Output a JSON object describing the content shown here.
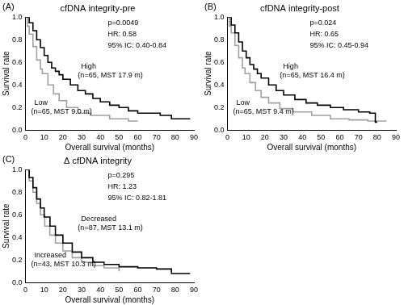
{
  "chart_data": [
    {
      "type": "line",
      "panel": "(A)",
      "title": "cfDNA integrity-pre",
      "x_label": "Overall survival (months)",
      "y_label": "Survival rate",
      "xlim": [
        0,
        90
      ],
      "xticks": [
        0,
        10,
        20,
        30,
        40,
        50,
        60,
        70,
        80,
        90
      ],
      "ylim": [
        0,
        1
      ],
      "yticks": [
        {
          "value": 0,
          "label": "0.0"
        },
        {
          "value": 0.2,
          "label": "0.2"
        },
        {
          "value": 0.4,
          "label": "0.4"
        },
        {
          "value": 0.6,
          "label": "0.6"
        },
        {
          "value": 0.8,
          "label": "0.8"
        },
        {
          "value": 1,
          "label": "1.0"
        }
      ],
      "grid": false,
      "line_style": "step",
      "annotations": [
        "p=0.0049",
        "HR: 0.58",
        "95% IC: 0.40-0.84"
      ],
      "series": [
        {
          "name": "High",
          "annotation": "(n=65, MST 17.9 m)",
          "color": "#000000",
          "x": [
            0,
            2,
            4,
            6,
            8,
            10,
            12,
            14,
            16,
            18,
            20,
            24,
            28,
            32,
            36,
            40,
            45,
            50,
            55,
            60,
            66,
            72,
            78,
            88
          ],
          "values": [
            1,
            0.95,
            0.88,
            0.8,
            0.73,
            0.66,
            0.6,
            0.55,
            0.52,
            0.49,
            0.45,
            0.4,
            0.35,
            0.32,
            0.28,
            0.25,
            0.22,
            0.2,
            0.17,
            0.15,
            0.15,
            0.13,
            0.1,
            0.1
          ]
        },
        {
          "name": "Low",
          "annotation": "(n=65, MST 9.0 m)",
          "color": "#a0a0a0",
          "x": [
            0,
            1,
            2,
            4,
            6,
            8,
            9,
            12,
            15,
            18,
            22,
            28,
            35,
            45,
            55,
            60
          ],
          "values": [
            1,
            0.92,
            0.85,
            0.74,
            0.62,
            0.54,
            0.5,
            0.4,
            0.32,
            0.26,
            0.2,
            0.15,
            0.13,
            0.1,
            0.08,
            0.08
          ]
        }
      ]
    },
    {
      "type": "line",
      "panel": "(B)",
      "title": "cfDNA integrity-post",
      "x_label": "Overall survival (months)",
      "y_label": "Survival rate",
      "xlim": [
        0,
        90
      ],
      "xticks": [
        0,
        10,
        20,
        30,
        40,
        50,
        60,
        70,
        80,
        90
      ],
      "ylim": [
        0,
        1
      ],
      "yticks": [
        {
          "value": 0,
          "label": "0.0"
        },
        {
          "value": 0.2,
          "label": "0.2"
        },
        {
          "value": 0.4,
          "label": "0.4"
        },
        {
          "value": 0.6,
          "label": "0.6"
        },
        {
          "value": 0.8,
          "label": "0.8"
        },
        {
          "value": 1,
          "label": "1.0"
        }
      ],
      "grid": false,
      "line_style": "step",
      "annotations": [
        "p=0.024",
        "HR: 0.65",
        "95% IC: 0.45-0.94"
      ],
      "series": [
        {
          "name": "High",
          "annotation": "(n=65, MST 16.4 m)",
          "color": "#000000",
          "x": [
            0,
            2,
            4,
            6,
            8,
            10,
            12,
            14,
            16,
            18,
            22,
            26,
            30,
            36,
            42,
            48,
            55,
            62,
            70,
            76,
            79,
            80
          ],
          "values": [
            1,
            0.93,
            0.86,
            0.78,
            0.7,
            0.64,
            0.58,
            0.54,
            0.5,
            0.46,
            0.4,
            0.35,
            0.31,
            0.27,
            0.24,
            0.22,
            0.2,
            0.18,
            0.16,
            0.15,
            0.07,
            0.07
          ]
        },
        {
          "name": "Low",
          "annotation": "(n=65, MST 9.4 m)",
          "color": "#a0a0a0",
          "x": [
            0,
            1,
            2,
            4,
            6,
            8,
            9.4,
            12,
            15,
            18,
            22,
            28,
            35,
            45,
            55,
            65,
            75,
            85
          ],
          "values": [
            1,
            0.92,
            0.86,
            0.75,
            0.64,
            0.55,
            0.5,
            0.42,
            0.35,
            0.29,
            0.24,
            0.19,
            0.16,
            0.13,
            0.1,
            0.09,
            0.08,
            0.08
          ]
        }
      ]
    },
    {
      "type": "line",
      "panel": "(C)",
      "title": "Δ cfDNA integrity",
      "x_label": "Overall survival (months)",
      "y_label": "Survival rate",
      "xlim": [
        0,
        90
      ],
      "xticks": [
        0,
        10,
        20,
        30,
        40,
        50,
        60,
        70,
        80,
        90
      ],
      "ylim": [
        0,
        1
      ],
      "yticks": [
        {
          "value": 0,
          "label": "0.0"
        },
        {
          "value": 0.2,
          "label": "0.2"
        },
        {
          "value": 0.4,
          "label": "0.4"
        },
        {
          "value": 0.6,
          "label": "0.6"
        },
        {
          "value": 0.8,
          "label": "0.8"
        },
        {
          "value": 1,
          "label": "1.0"
        }
      ],
      "grid": false,
      "line_style": "step",
      "annotations": [
        "p=0.295",
        "HR: 1.23",
        "95% IC: 0.82-1.81"
      ],
      "series": [
        {
          "name": "Decreased",
          "annotation": "(n=87, MST 13.1 m)",
          "color": "#000000",
          "x": [
            0,
            2,
            4,
            6,
            8,
            10,
            13.1,
            16,
            20,
            25,
            30,
            36,
            42,
            50,
            60,
            70,
            78,
            88
          ],
          "values": [
            1,
            0.93,
            0.84,
            0.74,
            0.66,
            0.58,
            0.5,
            0.42,
            0.35,
            0.27,
            0.22,
            0.18,
            0.16,
            0.14,
            0.13,
            0.12,
            0.08,
            0.08
          ]
        },
        {
          "name": "Increased",
          "annotation": "(n=43, MST 10.3 m)",
          "color": "#a0a0a0",
          "x": [
            0,
            2,
            4,
            6,
            8,
            10.3,
            13,
            16,
            20,
            25,
            30,
            36,
            42,
            50
          ],
          "values": [
            1,
            0.9,
            0.8,
            0.7,
            0.6,
            0.5,
            0.42,
            0.35,
            0.28,
            0.22,
            0.18,
            0.15,
            0.13,
            0.1
          ]
        }
      ]
    }
  ]
}
